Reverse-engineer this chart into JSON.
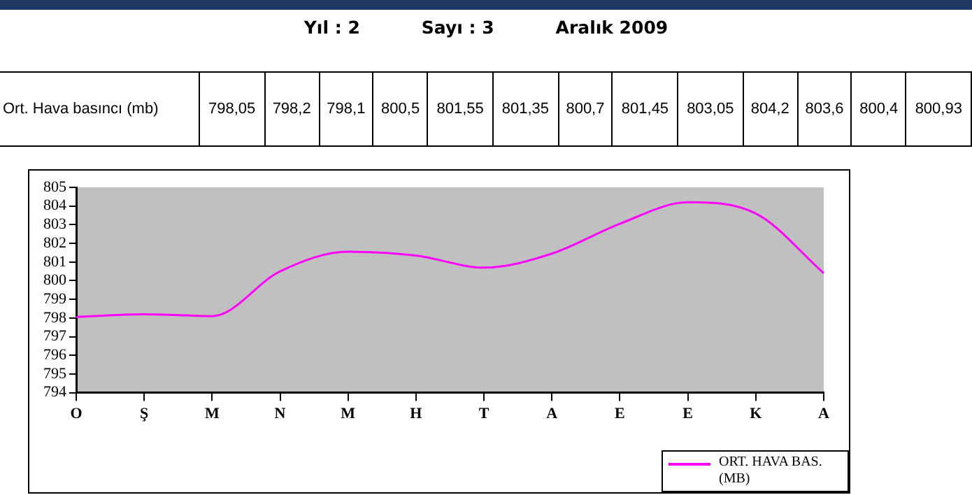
{
  "chart_data": {
    "type": "line",
    "categories": [
      "O",
      "Ş",
      "M",
      "N",
      "M",
      "H",
      "T",
      "A",
      "E",
      "E",
      "K",
      "A"
    ],
    "series": [
      {
        "name": "ORT. HAVA BAS. (MB)",
        "color": "#ff00ff",
        "values": [
          798.05,
          798.2,
          798.1,
          800.5,
          801.55,
          801.35,
          800.7,
          801.45,
          803.05,
          804.2,
          803.6,
          800.4
        ]
      }
    ],
    "ylim": [
      794,
      805
    ],
    "yticks": [
      794,
      795,
      796,
      797,
      798,
      799,
      800,
      801,
      802,
      803,
      804,
      805
    ],
    "grid": false,
    "legend": "bottom right",
    "marker": "none",
    "line_style": "solid",
    "annotations": [
      "Yıl : 2",
      "Sayı : 3",
      "Aralık 2009",
      "Ort. Hava basıncı (mb)",
      "798,05",
      "798,2",
      "798,1",
      "800,5",
      "801,55",
      "801,35",
      "800,7",
      "801,45",
      "803,05",
      "804,2",
      "803,6",
      "800,4",
      "800,93"
    ]
  }
}
